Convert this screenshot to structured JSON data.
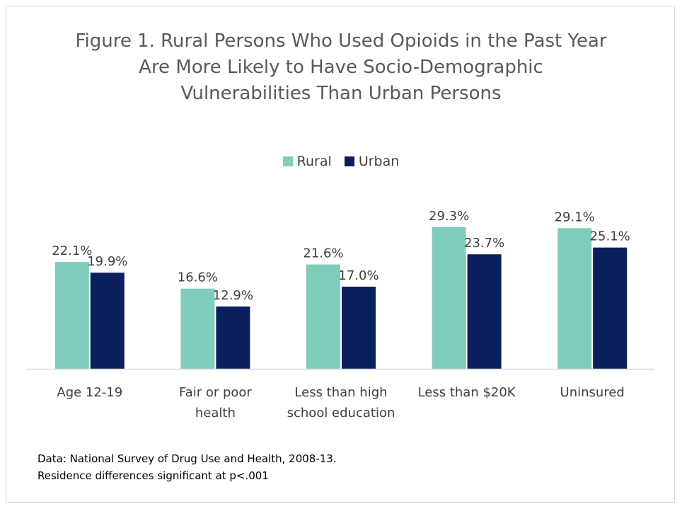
{
  "chart_data": {
    "type": "bar",
    "title_lines": [
      "Figure 1. Rural Persons Who Used Opioids in the Past Year",
      "Are More Likely to Have Socio-Demographic",
      "Vulnerabilities Than Urban Persons"
    ],
    "categories": [
      [
        "Age 12-19"
      ],
      [
        "Fair or poor",
        "health"
      ],
      [
        "Less than high",
        "school education"
      ],
      [
        "Less than $20K"
      ],
      [
        "Uninsured"
      ]
    ],
    "series": [
      {
        "name": "Rural",
        "color": "#7fcdbb",
        "values": [
          22.1,
          16.6,
          21.6,
          29.3,
          29.1
        ],
        "labels": [
          "22.1%",
          "16.6%",
          "21.6%",
          "29.3%",
          "29.1%"
        ]
      },
      {
        "name": "Urban",
        "color": "#0b1f5c",
        "values": [
          19.9,
          12.9,
          17.0,
          23.7,
          25.1
        ],
        "labels": [
          "19.9%",
          "12.9%",
          "17.0%",
          "23.7%",
          "25.1%"
        ]
      }
    ],
    "ylim": [
      0,
      35
    ],
    "legend_position": "top",
    "grid": false
  },
  "notes": [
    "Data: National Survey of Drug Use and Health, 2008-13.",
    "Residence differences significant at p<.001"
  ]
}
